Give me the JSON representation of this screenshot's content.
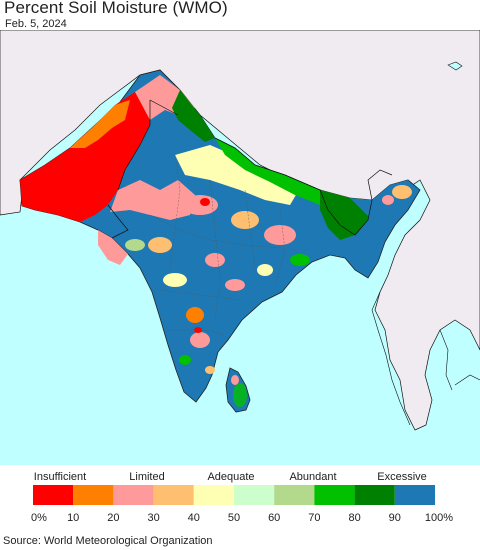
{
  "header": {
    "title": "Percent Soil Moisture (WMO)",
    "date": "Feb. 5, 2024"
  },
  "legend": {
    "categories": [
      {
        "label": "Insufficient",
        "color": "#ff0000"
      },
      {
        "label": "Limited",
        "color": "#ff9a9a"
      },
      {
        "label": "Adequate",
        "color": "#ffffb3"
      },
      {
        "label": "Abundant",
        "color": "#b3d98c"
      },
      {
        "label": "Excessive",
        "color": "#1e78b4"
      }
    ],
    "bins": [
      {
        "range": "0-10",
        "color": "#ff0000"
      },
      {
        "range": "10-20",
        "color": "#ff7f00"
      },
      {
        "range": "20-30",
        "color": "#ff9a9a"
      },
      {
        "range": "30-40",
        "color": "#ffbf70"
      },
      {
        "range": "40-50",
        "color": "#ffffb3"
      },
      {
        "range": "50-60",
        "color": "#ccffcc"
      },
      {
        "range": "60-70",
        "color": "#b3d98c"
      },
      {
        "range": "70-80",
        "color": "#00c000"
      },
      {
        "range": "80-90",
        "color": "#008000"
      },
      {
        "range": "90-100",
        "color": "#1e78b4"
      }
    ],
    "ticks": [
      "0%",
      "10",
      "20",
      "30",
      "40",
      "50",
      "60",
      "70",
      "80",
      "90",
      "100%"
    ]
  },
  "map": {
    "ocean_color": "#bfffff",
    "land_outside_color": "#f0ebf0",
    "boundary_color": "#111111"
  },
  "footer": {
    "source": "Source: World Meteorological Organization"
  }
}
